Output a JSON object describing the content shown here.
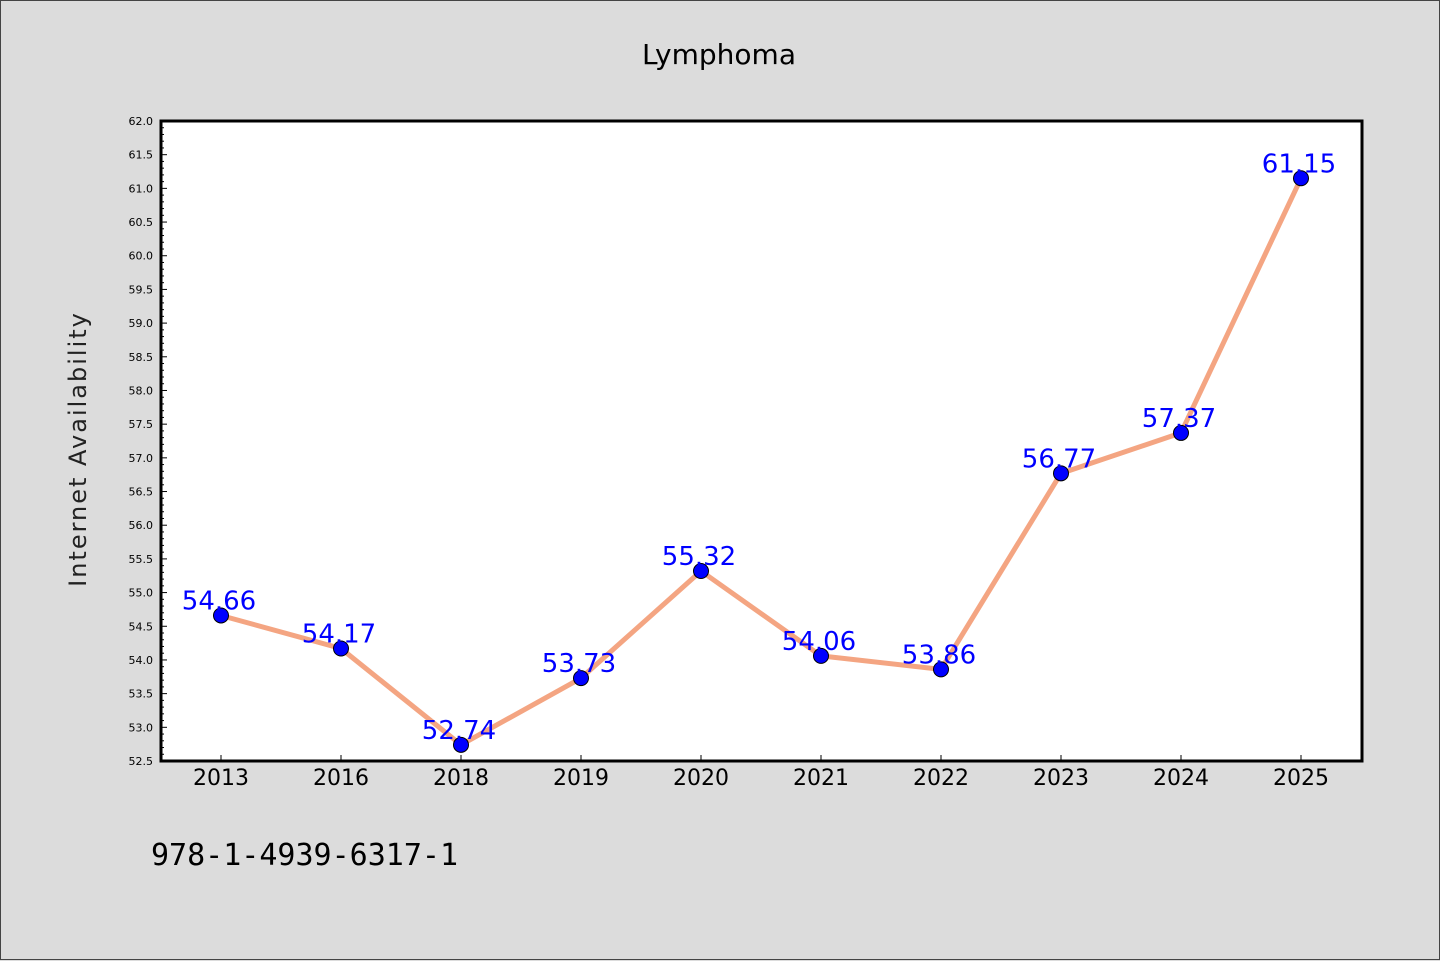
{
  "chart_data": {
    "type": "line",
    "title": "Lymphoma",
    "xlabel": "",
    "ylabel": "Internet Availability",
    "categories": [
      "2013",
      "2016",
      "2018",
      "2019",
      "2020",
      "2021",
      "2022",
      "2023",
      "2024",
      "2025"
    ],
    "series": [
      {
        "values": [
          54.66,
          54.17,
          52.74,
          53.73,
          55.32,
          54.06,
          53.86,
          56.77,
          57.37,
          61.15
        ],
        "data_labels": [
          "54.66",
          "54.17",
          "52.74",
          "53.73",
          "55.32",
          "54.06",
          "53.86",
          "56.77",
          "57.37",
          "61.15"
        ]
      }
    ],
    "ylim": [
      52.5,
      62.0
    ],
    "yticks": [
      "52.5",
      "53.0",
      "53.5",
      "54.0",
      "54.5",
      "55.0",
      "55.5",
      "56.0",
      "56.5",
      "57.0",
      "57.5",
      "58.0",
      "58.5",
      "59.0",
      "59.5",
      "60.0",
      "60.5",
      "61.0",
      "61.5",
      "62.0"
    ],
    "grid": false,
    "line_color": "#f4a582",
    "marker_color": "#0000ff",
    "label_color": "#0000ff"
  },
  "footer": {
    "isbn": "978-1-4939-6317-1"
  }
}
